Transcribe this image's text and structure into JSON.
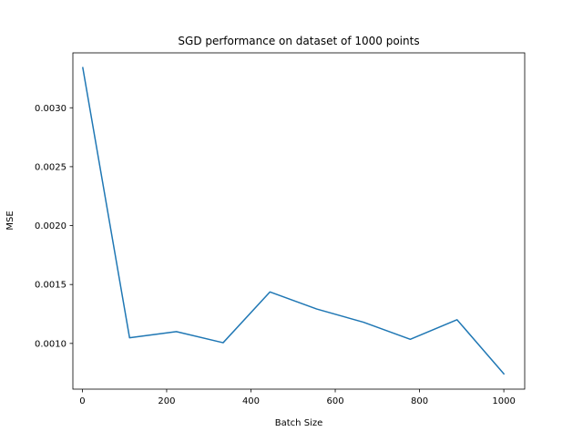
{
  "chart_data": {
    "type": "line",
    "title": "SGD performance on dataset of 1000 points",
    "xlabel": "Batch Size",
    "ylabel": "MSE",
    "xlim": [
      -22.5,
      1049.5
    ],
    "ylim": [
      0.000612,
      0.003466
    ],
    "xticks": [
      0,
      200,
      400,
      600,
      800,
      1000
    ],
    "xtick_labels": [
      "0",
      "200",
      "400",
      "600",
      "800",
      "1000"
    ],
    "yticks": [
      0.001,
      0.0015,
      0.002,
      0.0025,
      0.003
    ],
    "ytick_labels": [
      "0.0010",
      "0.0015",
      "0.0020",
      "0.0025",
      "0.0030"
    ],
    "grid": false,
    "legend": null,
    "series": [
      {
        "color": "#1f77b4",
        "x": [
          1,
          112,
          223,
          334,
          445,
          556,
          667,
          778,
          889,
          1000
        ],
        "y": [
          0.00334,
          0.001048,
          0.0011,
          0.001006,
          0.001437,
          0.001292,
          0.00118,
          0.001035,
          0.001201,
          0.000742
        ]
      }
    ]
  }
}
